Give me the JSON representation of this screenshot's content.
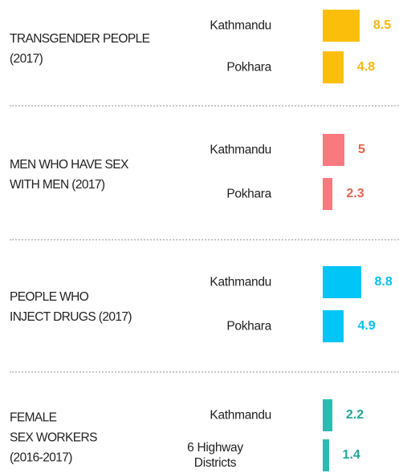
{
  "chart_data": [
    {
      "type": "bar",
      "title": "TRANSGENDER PEOPLE\n(2017)",
      "categories": [
        "Kathmandu",
        "Pokhara"
      ],
      "values": [
        8.5,
        4.8
      ],
      "color": "#fbbf0b",
      "label_color": "#f5b80a"
    },
    {
      "type": "bar",
      "title": "MEN WHO HAVE SEX\nWITH MEN (2017)",
      "categories": [
        "Kathmandu",
        "Pokhara"
      ],
      "values": [
        5,
        2.3
      ],
      "color": "#f8797e",
      "label_color": "#e5634c"
    },
    {
      "type": "bar",
      "title": "PEOPLE WHO\nINJECT DRUGS (2017)",
      "categories": [
        "Kathmandu",
        "Pokhara"
      ],
      "values": [
        8.8,
        4.9
      ],
      "color": "#00c5f6",
      "label_color": "#00bff2"
    },
    {
      "type": "bar",
      "title": "FEMALE\nSEX WORKERS\n(2016-2017)",
      "categories": [
        "Kathmandu",
        "6 Highway\nDistricts"
      ],
      "values": [
        2.2,
        1.4
      ],
      "color": "#2bbcb1",
      "label_color": "#1fa89c"
    }
  ]
}
